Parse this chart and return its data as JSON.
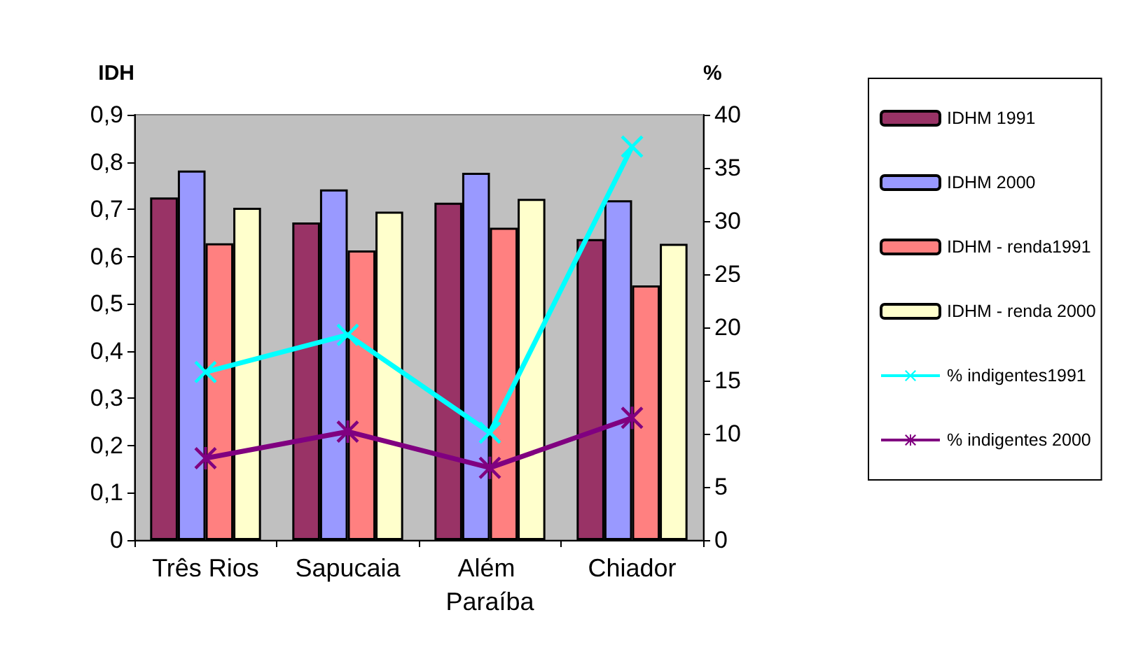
{
  "chart_data": {
    "type": "bar",
    "ylabel": "IDH",
    "y2label": "%",
    "categories": [
      "Três Rios",
      "Sapucaia",
      "Além Paraíba",
      "Chiador"
    ],
    "series": [
      {
        "name": "IDHM 1991",
        "color": "#993366",
        "values": [
          0.725,
          0.672,
          0.714,
          0.637
        ]
      },
      {
        "name": "IDHM 2000",
        "color": "#9999ff",
        "values": [
          0.782,
          0.742,
          0.777,
          0.719
        ]
      },
      {
        "name": "IDHM - renda1991",
        "color": "#ff8080",
        "values": [
          0.628,
          0.613,
          0.661,
          0.539
        ]
      },
      {
        "name": "IDHM - renda 2000",
        "color": "#ffffcc",
        "values": [
          0.703,
          0.695,
          0.722,
          0.627
        ]
      },
      {
        "name": "% indigentes1991",
        "type": "line",
        "axis": "y2",
        "marker": "cross",
        "color": "#00ffff",
        "values": [
          15.8,
          19.3,
          10.1,
          37.0
        ]
      },
      {
        "name": "% indigentes 2000",
        "type": "line",
        "axis": "y2",
        "marker": "star",
        "color": "#800080",
        "values": [
          7.7,
          10.2,
          6.8,
          11.5
        ]
      }
    ],
    "ylim": [
      0,
      0.9
    ],
    "yticks": [
      0,
      {
        "value": 0.1,
        "label": "0,1"
      },
      {
        "value": 0.2,
        "label": "0,2"
      },
      {
        "value": 0.3,
        "label": "0,3"
      },
      {
        "value": 0.4,
        "label": "0,4"
      },
      {
        "value": 0.5,
        "label": "0,5"
      },
      {
        "value": 0.6,
        "label": "0,6"
      },
      {
        "value": 0.7,
        "label": "0,7"
      },
      {
        "value": 0.8,
        "label": "0,8"
      },
      {
        "value": 0.9,
        "label": "0,9"
      }
    ],
    "y2lim": [
      0,
      40
    ],
    "y2ticks": [
      0,
      5,
      10,
      15,
      20,
      25,
      30,
      35,
      40
    ],
    "grid": false,
    "legend": "right"
  }
}
